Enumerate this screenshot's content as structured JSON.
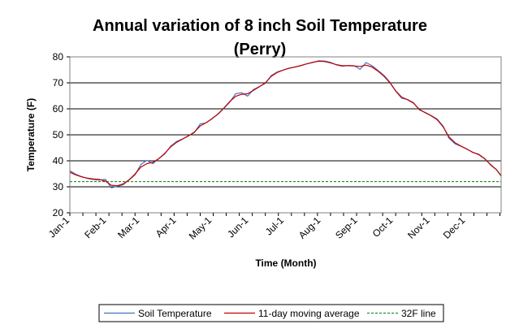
{
  "chart_data": {
    "type": "line",
    "title_line1": "Annual variation of 8 inch Soil Temperature",
    "title_line2": "(Perry)",
    "xlabel": "Time (Month)",
    "ylabel": "Temperature (F)",
    "ylim": [
      20,
      80
    ],
    "yticks": [
      "20",
      "30",
      "40",
      "50",
      "60",
      "70",
      "80"
    ],
    "xlim": [
      1,
      365
    ],
    "x_tick_labels": [
      "Jan-1",
      "Feb-1",
      "Mar-1",
      "Apr-1",
      "May-1",
      "Jun-1",
      "Jul-1",
      "Aug-1",
      "Sep-1",
      "Oct-1",
      "Nov-1",
      "Dec-1"
    ],
    "x_tick_days": [
      1,
      32,
      60,
      91,
      121,
      152,
      182,
      213,
      244,
      274,
      305,
      335
    ],
    "grid": "horizontal",
    "legend_position": "bottom",
    "reference_line": {
      "name": "32F line",
      "value": 32,
      "color": "#008000"
    },
    "series": [
      {
        "name": "Soil Temperature",
        "color": "#4472c4",
        "x": [
          1,
          6,
          11,
          16,
          21,
          26,
          31,
          36,
          41,
          46,
          51,
          56,
          61,
          66,
          71,
          76,
          81,
          86,
          91,
          96,
          101,
          106,
          111,
          116,
          121,
          126,
          131,
          136,
          141,
          146,
          151,
          156,
          161,
          166,
          171,
          176,
          181,
          186,
          191,
          196,
          201,
          206,
          211,
          216,
          221,
          226,
          231,
          236,
          241,
          246,
          251,
          256,
          261,
          266,
          271,
          276,
          281,
          286,
          291,
          296,
          301,
          306,
          311,
          316,
          321,
          326,
          331,
          336,
          341,
          346,
          351,
          356,
          361,
          365
        ],
        "values": [
          36.2,
          34.8,
          33.9,
          33.2,
          32.8,
          32.6,
          32.9,
          29.6,
          30.2,
          30.8,
          32.6,
          34.6,
          38.6,
          40.2,
          38.9,
          40.8,
          42.6,
          45.6,
          47.4,
          48.4,
          49.6,
          50.8,
          54.2,
          54.6,
          56.3,
          57.9,
          60.2,
          62.6,
          65.8,
          66.2,
          64.9,
          67.4,
          68.6,
          69.8,
          72.8,
          74.2,
          74.9,
          75.7,
          76.1,
          76.6,
          77.3,
          77.8,
          78.5,
          78.4,
          77.9,
          76.9,
          76.4,
          76.7,
          76.6,
          75.2,
          77.8,
          76.6,
          74.8,
          72.9,
          70.3,
          66.8,
          64.1,
          63.6,
          62.4,
          59.6,
          58.6,
          57.4,
          56.1,
          53.4,
          48.7,
          46.6,
          45.6,
          44.6,
          43.2,
          42.6,
          40.9,
          38.4,
          36.6,
          34.1
        ]
      },
      {
        "name": "11-day moving average",
        "color": "#c00000",
        "x": [
          1,
          6,
          11,
          16,
          21,
          26,
          31,
          36,
          41,
          46,
          51,
          56,
          61,
          66,
          71,
          76,
          81,
          86,
          91,
          96,
          101,
          106,
          111,
          116,
          121,
          126,
          131,
          136,
          141,
          146,
          151,
          156,
          161,
          166,
          171,
          176,
          181,
          186,
          191,
          196,
          201,
          206,
          211,
          216,
          221,
          226,
          231,
          236,
          241,
          246,
          251,
          256,
          261,
          266,
          271,
          276,
          281,
          286,
          291,
          296,
          301,
          306,
          311,
          316,
          321,
          326,
          331,
          336,
          341,
          346,
          351,
          356,
          361,
          365
        ],
        "values": [
          35.6,
          34.6,
          33.8,
          33.3,
          33.0,
          32.8,
          32.2,
          30.6,
          30.4,
          31.1,
          32.7,
          34.9,
          37.6,
          38.9,
          39.4,
          40.8,
          42.8,
          45.3,
          47.1,
          48.3,
          49.6,
          51.0,
          53.4,
          54.7,
          56.2,
          58.0,
          60.3,
          62.8,
          64.8,
          65.6,
          65.8,
          67.1,
          68.5,
          70.0,
          72.5,
          74.0,
          74.9,
          75.6,
          76.1,
          76.7,
          77.3,
          77.9,
          78.3,
          78.2,
          77.7,
          77.0,
          76.6,
          76.6,
          76.5,
          76.3,
          76.8,
          76.1,
          74.5,
          72.6,
          70.1,
          66.9,
          64.5,
          63.5,
          62.2,
          59.8,
          58.5,
          57.3,
          55.8,
          53.1,
          49.2,
          47.0,
          45.7,
          44.5,
          43.3,
          42.4,
          40.8,
          38.6,
          36.6,
          34.3
        ]
      }
    ]
  }
}
